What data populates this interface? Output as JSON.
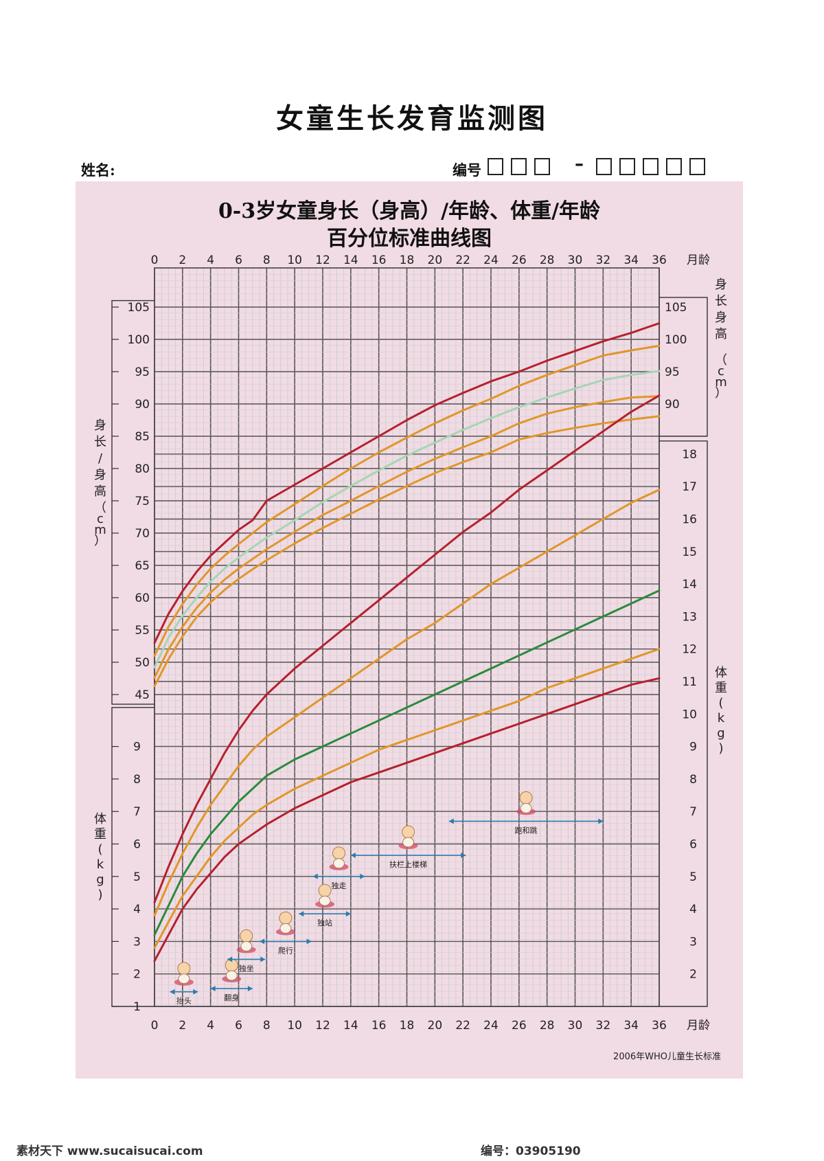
{
  "document": {
    "title": "女童生长发育监测图",
    "name_label": "姓名:",
    "id_label": "编号",
    "id_dash": "–",
    "footer_note": "2006年WHO儿童生长标准"
  },
  "watermark": {
    "text": "素材天下 www.sucaisucai.com",
    "id": "编号：03905190"
  },
  "chart_data": {
    "type": "line",
    "title": "0-3岁女童身长（身高）/年龄、体重/年龄",
    "subtitle": "百分位标准曲线图",
    "x": [
      0,
      1,
      2,
      3,
      4,
      5,
      6,
      7,
      8,
      10,
      12,
      14,
      16,
      18,
      20,
      22,
      24,
      26,
      28,
      30,
      32,
      34,
      36
    ],
    "xlabel": "月龄",
    "xlim": [
      0,
      36
    ],
    "xticks": [
      0,
      2,
      4,
      6,
      8,
      10,
      12,
      14,
      16,
      18,
      20,
      22,
      24,
      26,
      28,
      30,
      32,
      34,
      36
    ],
    "height_axis": {
      "label": "身长/身高",
      "unit": "（cm）",
      "left_ticks": [
        45,
        50,
        55,
        60,
        65,
        70,
        75,
        80,
        85,
        90,
        95,
        100,
        105
      ],
      "right_ticks": [
        90,
        95,
        100,
        105
      ],
      "right_label": "身长身高",
      "right_unit": "（cm）"
    },
    "weight_axis": {
      "label": "体重(kg)",
      "left_ticks": [
        1,
        2,
        3,
        4,
        5,
        6,
        7,
        8,
        9
      ],
      "right_ticks": [
        2,
        3,
        4,
        5,
        6,
        7,
        8,
        9,
        10,
        11,
        12,
        13,
        14,
        15,
        16,
        17,
        18
      ],
      "right_label": "体重(kg)"
    },
    "height_series": [
      {
        "color": "#b5202e",
        "values": [
          53.0,
          57.5,
          61.0,
          64.0,
          66.5,
          68.5,
          70.5,
          72.0,
          75.0,
          77.5,
          80.0,
          82.5,
          85.0,
          87.5,
          89.8,
          91.7,
          93.5,
          95.0,
          96.7,
          98.2,
          99.7,
          101.0,
          102.5
        ]
      },
      {
        "color": "#e0962a",
        "values": [
          51.0,
          55.5,
          59.0,
          62.0,
          64.5,
          66.5,
          68.3,
          70.0,
          71.7,
          74.5,
          77.3,
          80.0,
          82.5,
          84.8,
          87.0,
          89.0,
          90.8,
          92.8,
          94.5,
          96.0,
          97.5,
          98.3,
          99.0
        ]
      },
      {
        "color": "#a6d5b4",
        "values": [
          49.2,
          53.8,
          57.2,
          60.0,
          62.5,
          64.5,
          66.2,
          67.8,
          69.3,
          72.0,
          74.8,
          77.3,
          79.7,
          82.0,
          84.0,
          86.0,
          87.8,
          89.5,
          91.0,
          92.4,
          93.7,
          94.5,
          95.1
        ]
      },
      {
        "color": "#e0962a",
        "values": [
          47.6,
          52.0,
          55.5,
          58.4,
          60.8,
          62.8,
          64.5,
          66.0,
          67.5,
          70.2,
          72.8,
          75.0,
          77.3,
          79.5,
          81.5,
          83.3,
          85.0,
          87.0,
          88.5,
          89.5,
          90.3,
          91.0,
          91.2
        ]
      },
      {
        "color": "#e0962a",
        "values": [
          46.3,
          50.5,
          54.0,
          57.0,
          59.3,
          61.2,
          62.9,
          64.4,
          65.8,
          68.4,
          70.8,
          73.0,
          75.2,
          77.3,
          79.3,
          81.0,
          82.5,
          84.5,
          85.5,
          86.3,
          87.0,
          87.6,
          88.1
        ]
      }
    ],
    "weight_series": [
      {
        "color": "#b5202e",
        "values": [
          4.2,
          5.3,
          6.3,
          7.2,
          8.0,
          8.8,
          9.5,
          10.1,
          10.6,
          11.4,
          12.1,
          12.8,
          13.5,
          14.2,
          14.9,
          15.6,
          16.2,
          16.9,
          17.5,
          18.1,
          18.7,
          19.3,
          19.8
        ]
      },
      {
        "color": "#e0962a",
        "values": [
          3.8,
          4.8,
          5.7,
          6.5,
          7.2,
          7.8,
          8.4,
          8.9,
          9.3,
          9.9,
          10.5,
          11.1,
          11.7,
          12.3,
          12.8,
          13.4,
          14.0,
          14.5,
          15.0,
          15.5,
          16.0,
          16.5,
          16.9
        ]
      },
      {
        "color": "#2a8a3c",
        "values": [
          3.2,
          4.1,
          5.0,
          5.7,
          6.3,
          6.8,
          7.3,
          7.7,
          8.1,
          8.6,
          9.0,
          9.4,
          9.8,
          10.2,
          10.6,
          11.0,
          11.4,
          11.8,
          12.2,
          12.6,
          13.0,
          13.4,
          13.8
        ]
      },
      {
        "color": "#e0962a",
        "values": [
          2.8,
          3.6,
          4.4,
          5.0,
          5.6,
          6.1,
          6.5,
          6.9,
          7.2,
          7.7,
          8.1,
          8.5,
          8.9,
          9.2,
          9.5,
          9.8,
          10.1,
          10.4,
          10.8,
          11.1,
          11.4,
          11.7,
          12.0
        ]
      },
      {
        "color": "#b5202e",
        "values": [
          2.4,
          3.2,
          4.0,
          4.6,
          5.1,
          5.6,
          6.0,
          6.3,
          6.6,
          7.1,
          7.5,
          7.9,
          8.2,
          8.5,
          8.8,
          9.1,
          9.4,
          9.7,
          10.0,
          10.3,
          10.6,
          10.9,
          11.1
        ]
      }
    ],
    "milestones": [
      {
        "label": "抬头",
        "start": 1.1,
        "end": 3.1,
        "weight_level": 1.45
      },
      {
        "label": "翻身",
        "start": 4.0,
        "end": 7.0,
        "weight_level": 1.55
      },
      {
        "label": "独坐",
        "start": 5.2,
        "end": 7.9,
        "weight_level": 2.45
      },
      {
        "label": "爬行",
        "start": 7.5,
        "end": 11.2,
        "weight_level": 3.0
      },
      {
        "label": "独站",
        "start": 10.3,
        "end": 14.0,
        "weight_level": 3.85
      },
      {
        "label": "独走",
        "start": 11.3,
        "end": 15.0,
        "weight_level": 5.0
      },
      {
        "label": "扶栏上楼梯",
        "start": 14.0,
        "end": 22.2,
        "weight_level": 5.65
      },
      {
        "label": "跑和跳",
        "start": 21.0,
        "end": 32.0,
        "weight_level": 6.7
      }
    ],
    "grid": true
  }
}
